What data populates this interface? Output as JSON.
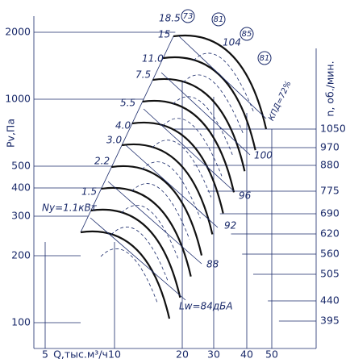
{
  "axes": {
    "y_label": "Pv,Па",
    "y_ticks": [
      "2000",
      "1000",
      "500",
      "400",
      "300",
      "200",
      "100"
    ],
    "x_label": "Q,тыс.м³/ч",
    "x_ticks": [
      "5",
      "10",
      "20",
      "30",
      "40",
      "50"
    ],
    "n_label": "n, об./мин.",
    "n_ticks": [
      "1050",
      "970",
      "880",
      "775",
      "690",
      "620",
      "560",
      "505",
      "440",
      "395"
    ]
  },
  "power_labels": [
    "18.5",
    "15",
    "11.0",
    "7.5",
    "5.5",
    "4.0",
    "3.0",
    "2.2",
    "1.5",
    "Ny=1.1кВт"
  ],
  "efficiency_labels": [
    "73",
    "81",
    "85",
    "81",
    "КПД=72%"
  ],
  "noise_labels": [
    "104",
    "100",
    "96",
    "92",
    "88",
    "Lw=84дБА"
  ]
}
